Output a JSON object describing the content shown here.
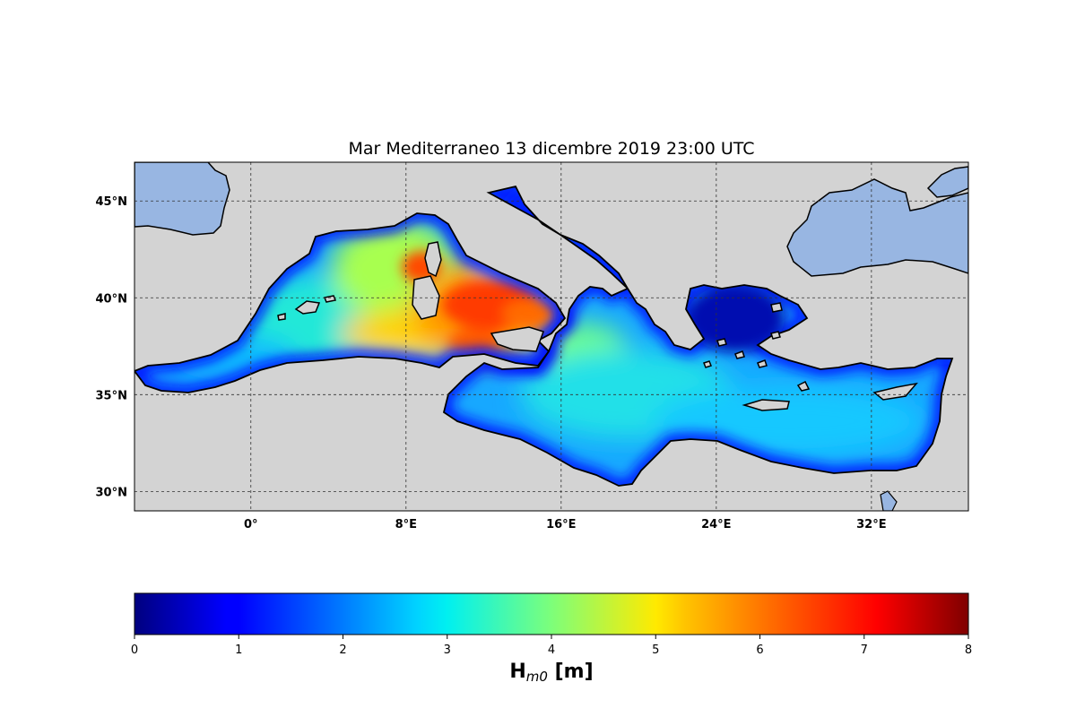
{
  "map": {
    "title": "Mar Mediterraneo 13 dicembre 2019  23:00 UTC",
    "extent": {
      "lon": [
        -6,
        37
      ],
      "lat": [
        29,
        47
      ]
    },
    "lat_ticks": [
      {
        "value": 30,
        "label": "30°N"
      },
      {
        "value": 35,
        "label": "35°N"
      },
      {
        "value": 40,
        "label": "40°N"
      },
      {
        "value": 45,
        "label": "45°N"
      }
    ],
    "lon_ticks": [
      {
        "value": 0,
        "label": "0°"
      },
      {
        "value": 8,
        "label": "8°E"
      },
      {
        "value": 16,
        "label": "16°E"
      },
      {
        "value": 24,
        "label": "24°E"
      },
      {
        "value": 32,
        "label": "32°E"
      }
    ],
    "gridlines": true,
    "colors": {
      "land": "#d3d3d3",
      "outer_water": "#98b6e2",
      "coast": "#000000"
    }
  },
  "colorbar": {
    "colormap": "jet",
    "range": [
      0,
      8
    ],
    "ticks": [
      "0",
      "1",
      "2",
      "3",
      "4",
      "5",
      "6",
      "7",
      "8"
    ],
    "label_main": "H",
    "label_sub": "m0",
    "label_unit": " [m]"
  }
}
